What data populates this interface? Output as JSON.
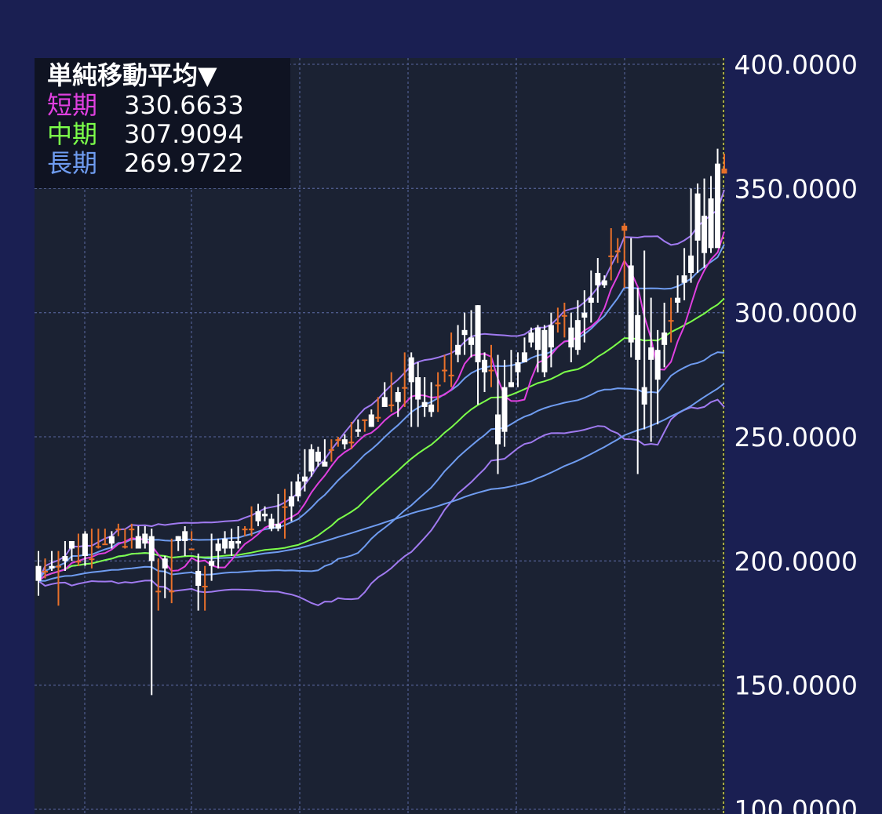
{
  "chart_data": {
    "type": "candlestick",
    "title": "単純移動平均▼",
    "indicator_values": [
      {
        "name": "短期",
        "value": "330.6633",
        "color": "#e040e0"
      },
      {
        "name": "中期",
        "value": "307.9094",
        "color": "#7cff4a"
      },
      {
        "name": "長期",
        "value": "269.9722",
        "color": "#6f9cf0"
      }
    ],
    "y_ticks": [
      "400.0000",
      "350.0000",
      "300.0000",
      "250.0000",
      "200.0000",
      "150.0000",
      "100.0000"
    ],
    "ylim": [
      100,
      400
    ],
    "grid": true,
    "colors": {
      "up": "#e8702a",
      "down": "#ffffff",
      "short": "#e040e0",
      "mid": "#7cff4a",
      "long": "#6f9cf0",
      "band_inner": "#6f9cf0",
      "band_outer": "#a07af0"
    },
    "candles": [
      [
        198,
        204,
        192,
        186
      ],
      [
        196,
        201,
        196,
        193
      ],
      [
        198,
        204,
        197,
        196
      ],
      [
        198,
        204,
        198,
        182
      ],
      [
        202,
        208,
        200,
        196
      ],
      [
        208,
        208,
        205,
        200
      ],
      [
        200,
        211,
        200,
        198
      ],
      [
        211,
        212,
        202,
        198
      ],
      [
        201,
        213,
        201,
        197
      ],
      [
        206,
        213,
        206,
        205
      ],
      [
        207,
        213,
        207,
        207
      ],
      [
        210,
        212,
        207,
        205
      ],
      [
        213,
        215,
        213,
        210
      ],
      [
        206,
        213,
        206,
        205
      ],
      [
        213,
        215,
        213,
        205
      ],
      [
        210,
        214,
        205,
        205
      ],
      [
        211,
        214,
        207,
        205
      ],
      [
        210,
        213,
        200,
        146
      ],
      [
        188,
        201,
        188,
        180
      ],
      [
        201,
        202,
        197,
        185
      ],
      [
        188,
        209,
        188,
        183
      ],
      [
        210,
        210,
        208,
        204
      ],
      [
        212,
        214,
        208,
        202
      ],
      [
        205,
        212,
        205,
        208
      ],
      [
        196,
        203,
        190,
        180
      ],
      [
        190,
        198,
        190,
        180
      ],
      [
        200,
        211,
        198,
        192
      ],
      [
        207,
        209,
        204,
        197
      ],
      [
        209,
        212,
        205,
        203
      ],
      [
        208,
        213,
        205,
        202
      ],
      [
        208,
        214,
        207,
        205
      ],
      [
        213,
        214,
        213,
        210
      ],
      [
        213,
        222,
        213,
        210
      ],
      [
        220,
        223,
        216,
        214
      ],
      [
        219,
        222,
        218,
        216
      ],
      [
        217,
        219,
        213,
        212
      ],
      [
        215,
        227,
        213,
        212
      ],
      [
        222,
        229,
        222,
        209
      ],
      [
        226,
        232,
        222,
        216
      ],
      [
        232,
        235,
        226,
        224
      ],
      [
        234,
        245,
        232,
        228
      ],
      [
        245,
        247,
        236,
        234
      ],
      [
        244,
        246,
        240,
        238
      ],
      [
        240,
        249,
        238,
        238
      ],
      [
        245,
        249,
        245,
        240
      ],
      [
        249,
        250,
        249,
        246
      ],
      [
        249,
        251,
        247,
        245
      ],
      [
        248,
        256,
        248,
        245
      ],
      [
        253,
        257,
        252,
        250
      ],
      [
        257,
        257,
        257,
        252
      ],
      [
        259,
        261,
        254,
        254
      ],
      [
        258,
        266,
        258,
        256
      ],
      [
        266,
        272,
        262,
        262
      ],
      [
        263,
        276,
        263,
        260
      ],
      [
        268,
        270,
        264,
        258
      ],
      [
        270,
        284,
        270,
        262
      ],
      [
        282,
        284,
        272,
        254
      ],
      [
        274,
        280,
        265,
        254
      ],
      [
        264,
        274,
        262,
        258
      ],
      [
        263,
        272,
        260,
        258
      ],
      [
        271,
        276,
        271,
        260
      ],
      [
        277,
        283,
        277,
        272
      ],
      [
        275,
        292,
        275,
        270
      ],
      [
        287,
        295,
        283,
        280
      ],
      [
        293,
        300,
        291,
        283
      ],
      [
        290,
        301,
        287,
        282
      ],
      [
        303,
        303,
        280,
        263
      ],
      [
        281,
        284,
        276,
        268
      ],
      [
        277,
        287,
        277,
        270
      ],
      [
        259,
        283,
        247,
        235
      ],
      [
        270,
        281,
        252,
        246
      ],
      [
        272,
        285,
        270,
        270
      ],
      [
        280,
        284,
        276,
        270
      ],
      [
        284,
        290,
        280,
        280
      ],
      [
        292,
        294,
        288,
        286
      ],
      [
        294,
        295,
        285,
        276
      ],
      [
        293,
        295,
        276,
        274
      ],
      [
        295,
        300,
        286,
        278
      ],
      [
        296,
        302,
        296,
        292
      ],
      [
        299,
        304,
        299,
        290
      ],
      [
        294,
        300,
        286,
        280
      ],
      [
        297,
        305,
        285,
        283
      ],
      [
        300,
        309,
        298,
        288
      ],
      [
        306,
        317,
        304,
        296
      ],
      [
        316,
        322,
        311,
        304
      ],
      [
        313,
        315,
        311,
        310
      ],
      [
        323,
        334,
        323,
        313
      ],
      [
        325,
        330,
        325,
        320
      ],
      [
        333,
        336,
        335,
        310
      ],
      [
        319,
        330,
        288,
        282
      ],
      [
        299,
        310,
        281,
        235
      ],
      [
        270,
        325,
        263,
        253
      ],
      [
        286,
        306,
        281,
        248
      ],
      [
        285,
        293,
        273,
        255
      ],
      [
        292,
        304,
        287,
        278
      ],
      [
        297,
        306,
        297,
        288
      ],
      [
        306,
        315,
        304,
        300
      ],
      [
        315,
        326,
        312,
        305
      ],
      [
        323,
        350,
        316,
        312
      ],
      [
        348,
        352,
        329,
        316
      ],
      [
        339,
        354,
        324,
        318
      ],
      [
        346,
        355,
        326,
        324
      ],
      [
        360,
        366,
        326,
        333
      ],
      [
        356,
        364,
        358,
        356
      ]
    ]
  }
}
